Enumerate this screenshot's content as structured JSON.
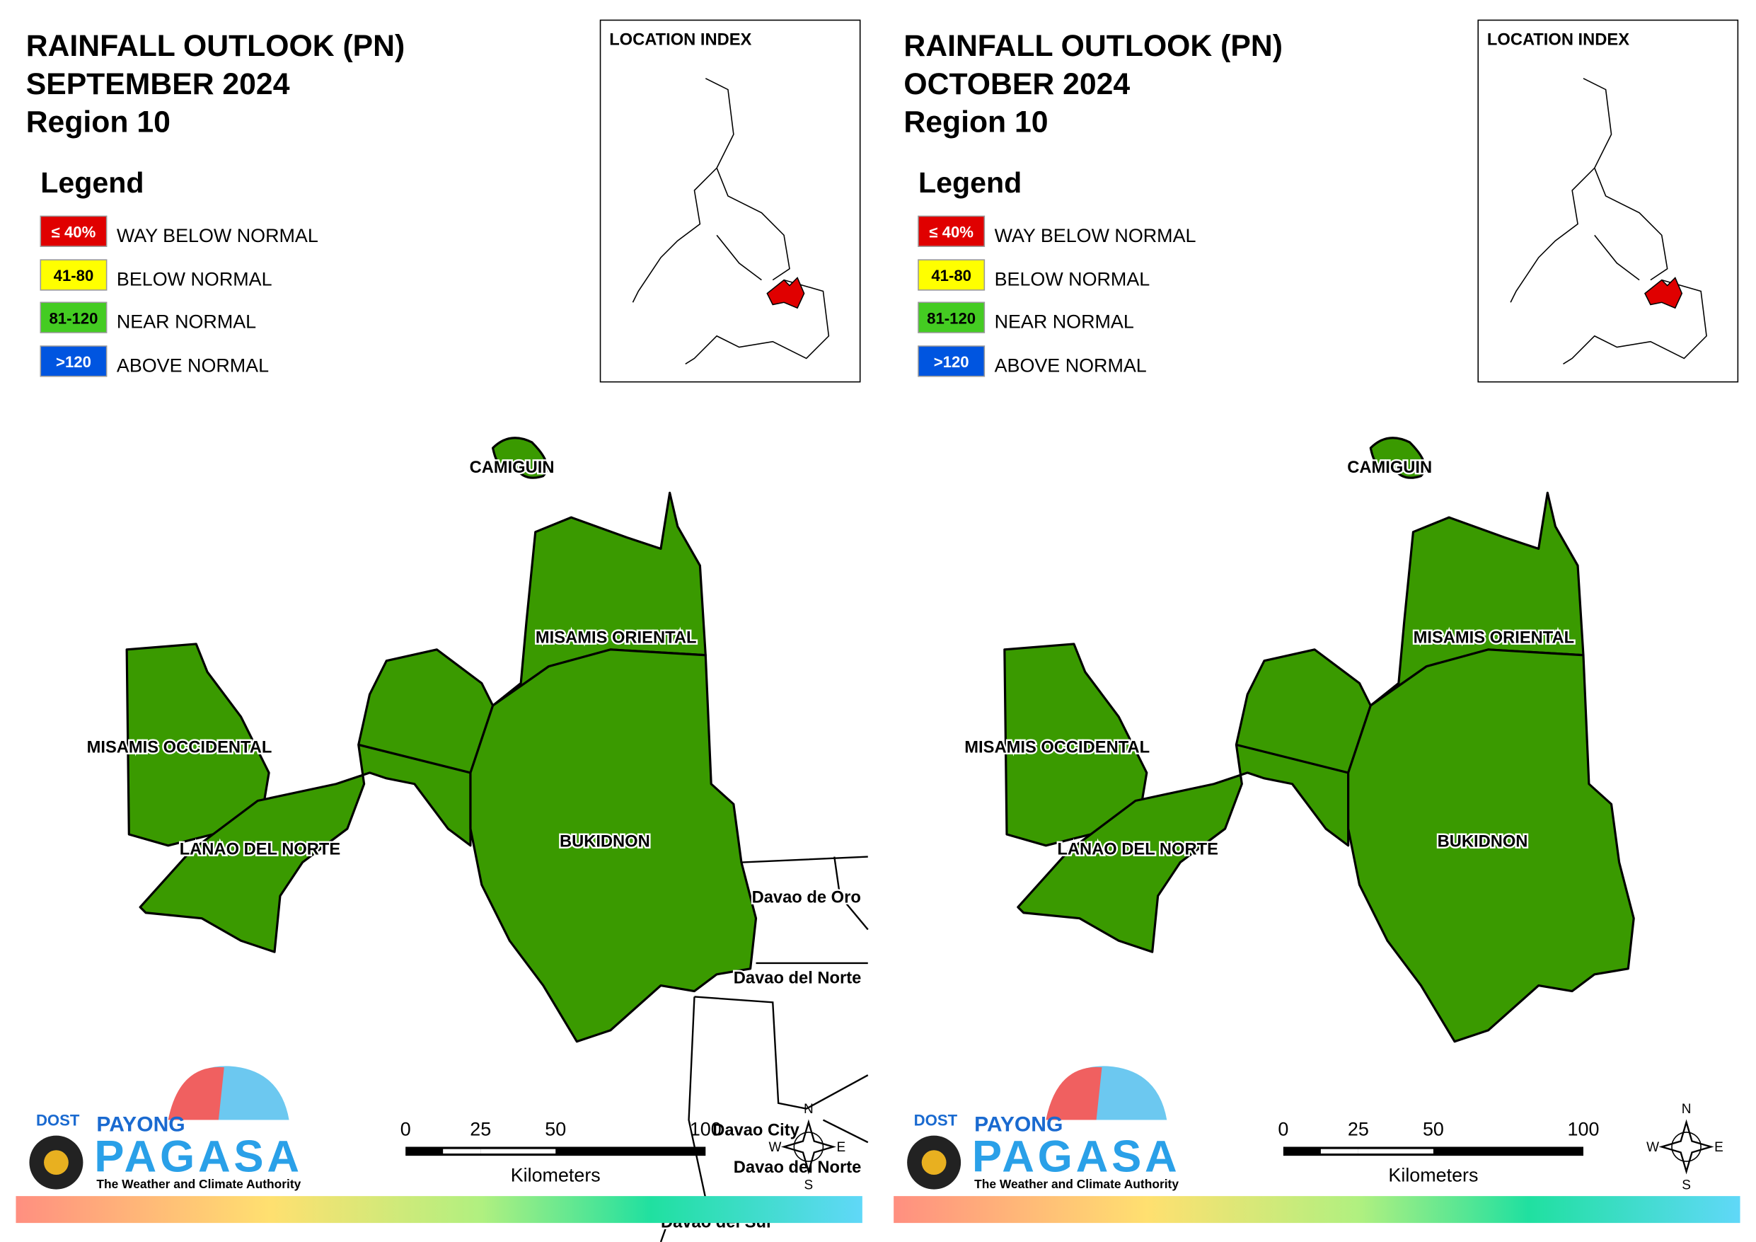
{
  "panels": [
    {
      "title": [
        "RAINFALL OUTLOOK (PN)",
        "SEPTEMBER 2024",
        "Region 10"
      ],
      "legend_title": "Legend",
      "legend": [
        {
          "swatch": "≤ 40%",
          "label": "WAY BELOW NORMAL",
          "color": "#e00000"
        },
        {
          "swatch": "41-80",
          "label": "BELOW NORMAL",
          "color": "#ffff00"
        },
        {
          "swatch": "81-120",
          "label": "NEAR NORMAL",
          "color": "#44cc22"
        },
        {
          "swatch": ">120",
          "label": "ABOVE NORMAL",
          "color": "#0055e0"
        }
      ],
      "location_index": "LOCATION INDEX",
      "provinces": [
        "CAMIGUIN",
        "MISAMIS ORIENTAL",
        "MISAMIS OCCIDENTAL",
        "LANAO DEL NORTE",
        "BUKIDNON"
      ],
      "neighbors": [
        "Davao de Oro",
        "Davao del Norte",
        "Davao City",
        "Davao del Norte",
        "Davao del Sur"
      ],
      "scale_ticks": [
        0,
        25,
        50,
        100
      ],
      "scale_unit": "Kilometers",
      "logo": [
        "DOST",
        "PAYONG",
        "PAGASA",
        "The Weather and Climate Authority"
      ],
      "compass": [
        "N",
        "E",
        "S",
        "W"
      ]
    },
    {
      "title": [
        "RAINFALL OUTLOOK (PN)",
        "OCTOBER 2024",
        "Region 10"
      ],
      "legend_title": "Legend",
      "legend": [
        {
          "swatch": "≤ 40%",
          "label": "WAY BELOW NORMAL",
          "color": "#e00000"
        },
        {
          "swatch": "41-80",
          "label": "BELOW NORMAL",
          "color": "#ffff00"
        },
        {
          "swatch": "81-120",
          "label": "NEAR NORMAL",
          "color": "#44cc22"
        },
        {
          "swatch": ">120",
          "label": "ABOVE NORMAL",
          "color": "#0055e0"
        }
      ],
      "location_index": "LOCATION INDEX",
      "provinces": [
        "CAMIGUIN",
        "MISAMIS ORIENTAL",
        "MISAMIS OCCIDENTAL",
        "LANAO DEL NORTE",
        "BUKIDNON"
      ],
      "scale_ticks": [
        0,
        25,
        50,
        100
      ],
      "scale_unit": "Kilometers",
      "logo": [
        "DOST",
        "PAYONG",
        "PAGASA",
        "The Weather and Climate Authority"
      ],
      "compass": [
        "N",
        "E",
        "S",
        "W"
      ]
    }
  ]
}
